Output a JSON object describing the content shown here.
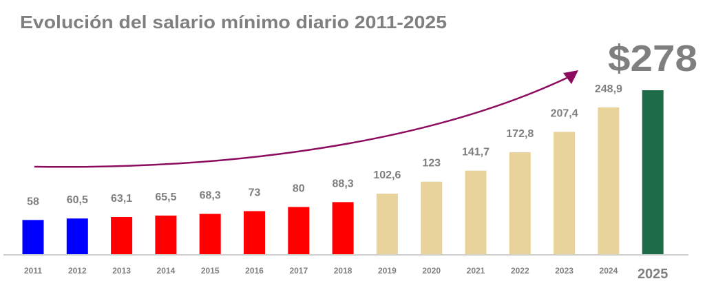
{
  "chart_data": {
    "type": "bar",
    "title": "Evolución del salario mínimo diario 2011-2025",
    "highlight_label": "$278",
    "xlabel": "",
    "ylabel": "",
    "ylim": [
      0,
      278
    ],
    "grid": false,
    "categories": [
      "2011",
      "2012",
      "2013",
      "2014",
      "2015",
      "2016",
      "2017",
      "2018",
      "2019",
      "2020",
      "2021",
      "2022",
      "2023",
      "2024",
      "2025"
    ],
    "values": [
      58,
      60.5,
      63.1,
      65.5,
      68.3,
      73,
      80,
      88.3,
      102.6,
      123,
      141.7,
      172.8,
      207.4,
      248.9,
      278
    ],
    "value_labels": [
      "58",
      "60,5",
      "63,1",
      "65,5",
      "68,3",
      "73",
      "80",
      "88,3",
      "102,6",
      "123",
      "141,7",
      "172,8",
      "207,4",
      "248,9",
      ""
    ],
    "colors": [
      "#0000ff",
      "#0000ff",
      "#ff0000",
      "#ff0000",
      "#ff0000",
      "#ff0000",
      "#ff0000",
      "#ff0000",
      "#e8d39a",
      "#e8d39a",
      "#e8d39a",
      "#e8d39a",
      "#e8d39a",
      "#e8d39a",
      "#1e6b47"
    ],
    "arrow_color": "#8c0b5f",
    "text_color": "#7f7f7f"
  }
}
